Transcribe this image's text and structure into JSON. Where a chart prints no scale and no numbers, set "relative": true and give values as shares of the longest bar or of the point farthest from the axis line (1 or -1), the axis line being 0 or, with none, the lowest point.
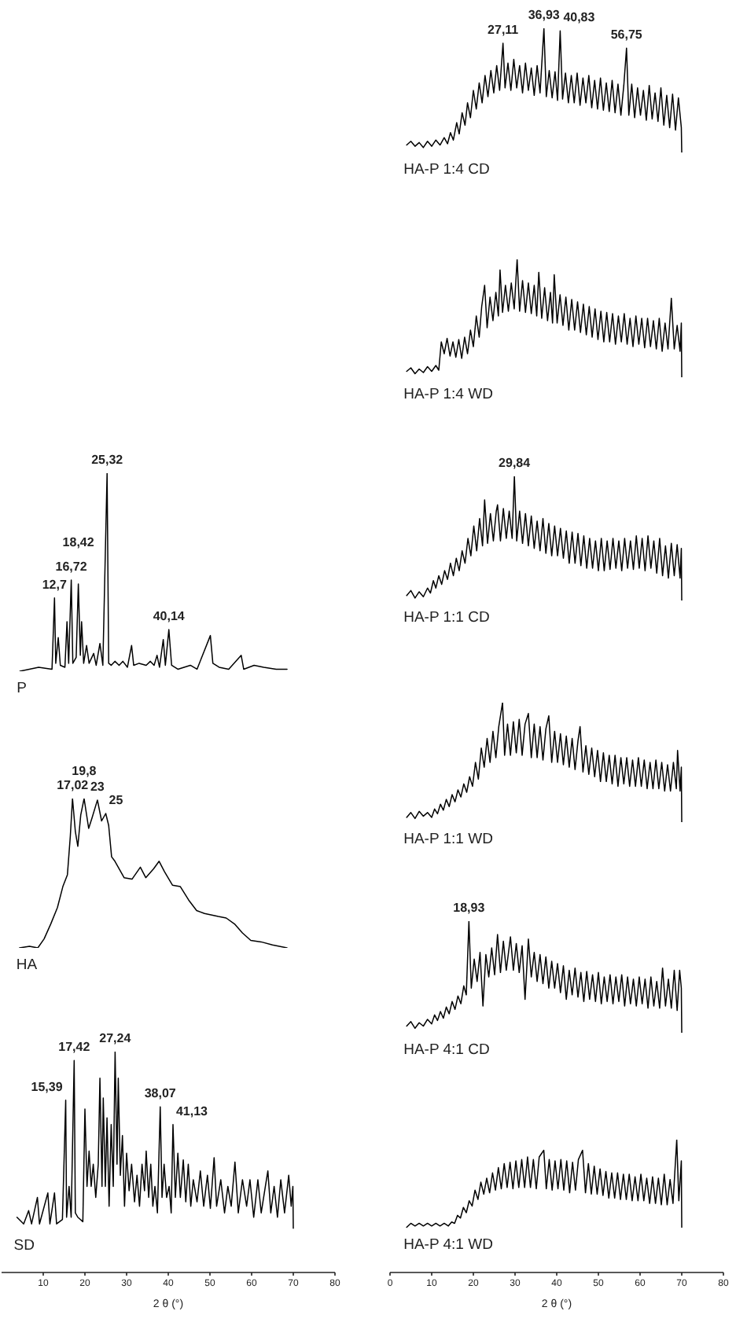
{
  "chart_data": [
    {
      "type": "line",
      "relative": true,
      "xlim": [
        0,
        80
      ],
      "tick_labels": false,
      "series": [
        {
          "name": "P",
          "color": "#000000",
          "x": [
            4.4,
            8.9,
            12.1,
            12.7,
            13.0,
            13.6,
            14.1,
            15.2,
            15.7,
            16.1,
            16.72,
            17.1,
            17.9,
            18.42,
            18.9,
            19.2,
            19.7,
            20.4,
            21.0,
            22.1,
            22.7,
            23.6,
            24.3,
            25.32,
            25.7,
            26.3,
            27.2,
            28.2,
            29.1,
            30.2,
            31.2,
            31.7,
            33.0,
            34.7,
            35.7,
            36.6,
            37.3,
            37.9,
            38.8,
            39.3,
            40.14,
            40.8,
            42.3,
            45.3,
            46.9,
            50.1,
            50.7,
            52.2,
            54.5,
            57.5,
            58.1,
            60.6,
            62.9,
            65.9,
            68.5
          ],
          "values": [
            0,
            0.02,
            0.01,
            0.37,
            0.04,
            0.17,
            0.03,
            0.02,
            0.25,
            0.04,
            0.46,
            0.04,
            0.07,
            0.44,
            0.08,
            0.25,
            0.04,
            0.13,
            0.04,
            0.09,
            0.03,
            0.14,
            0.03,
            1,
            0.04,
            0.03,
            0.05,
            0.03,
            0.05,
            0.02,
            0.13,
            0.03,
            0.04,
            0.03,
            0.05,
            0.03,
            0.08,
            0.02,
            0.16,
            0.03,
            0.21,
            0.03,
            0.01,
            0.03,
            0.01,
            0.18,
            0.04,
            0.02,
            0.01,
            0.08,
            0.01,
            0.03,
            0.02,
            0.01,
            0.01
          ]
        }
      ],
      "annotations": [
        {
          "text": "12,7",
          "x": 12.7,
          "y": 0.37
        },
        {
          "text": "16,72",
          "x": 16.72,
          "y": 0.46
        },
        {
          "text": "18,42",
          "x": 18.42,
          "y": 0.44
        },
        {
          "text": "25,32",
          "x": 25.32,
          "y": 1
        },
        {
          "text": "40,14",
          "x": 40.14,
          "y": 0.21
        }
      ]
    },
    {
      "type": "line",
      "relative": true,
      "xlim": [
        0,
        80
      ],
      "tick_labels": false,
      "series": [
        {
          "name": "HA",
          "color": "#000000",
          "x": [
            4.3,
            6.7,
            8.7,
            10.2,
            11.8,
            13.4,
            14.7,
            15.8,
            16.5,
            17.02,
            17.7,
            18.3,
            19.0,
            19.8,
            20.9,
            21.7,
            23,
            24,
            25,
            25.7,
            26.4,
            27.2,
            29.4,
            31.3,
            33.3,
            34.6,
            36.5,
            37.8,
            39.1,
            41.0,
            42.9,
            44.9,
            46.8,
            48.7,
            52.0,
            53.9,
            55.9,
            57.8,
            59.8,
            62.3,
            65.0,
            68.5
          ],
          "values": [
            0,
            0.01,
            0,
            0.06,
            0.16,
            0.27,
            0.41,
            0.49,
            0.75,
            1,
            0.78,
            0.68,
            0.89,
            1,
            0.8,
            0.87,
            0.99,
            0.85,
            0.9,
            0.82,
            0.61,
            0.58,
            0.47,
            0.46,
            0.54,
            0.47,
            0.53,
            0.58,
            0.51,
            0.42,
            0.41,
            0.32,
            0.25,
            0.23,
            0.21,
            0.2,
            0.16,
            0.1,
            0.05,
            0.04,
            0.02,
            0
          ]
        }
      ],
      "annotations": [
        {
          "text": "17,02",
          "x": 17.02,
          "y": 1
        },
        {
          "text": "19,8",
          "x": 19.8,
          "y": 1
        },
        {
          "text": "23",
          "x": 23,
          "y": 0.99
        },
        {
          "text": "25",
          "x": 25,
          "y": 0.9
        }
      ]
    },
    {
      "type": "line",
      "relative": true,
      "xlim": [
        0,
        80
      ],
      "xticks": [
        10,
        20,
        30,
        40,
        50,
        60,
        70,
        80
      ],
      "xlabel": "2 θ (°)",
      "tick_labels": "x",
      "series": [
        {
          "name": "SD",
          "color": "#000000",
          "x": [
            3.7,
            5.3,
            6.5,
            7.2,
            8.6,
            9.1,
            11.1,
            11.6,
            12.7,
            13.2,
            14.6,
            15.39,
            15.6,
            16.2,
            16.7,
            17.42,
            17.7,
            18.3,
            18.9,
            19.5,
            20,
            20.5,
            21,
            21.5,
            22,
            22.6,
            23.2,
            23.6,
            24.1,
            24.4,
            24.9,
            25.3,
            25.8,
            26.3,
            26.8,
            27.24,
            27.7,
            28,
            28.5,
            29,
            29.5,
            30,
            30.6,
            31.2,
            31.9,
            32.5,
            33.1,
            33.7,
            34.3,
            34.7,
            35.3,
            35.8,
            36.3,
            36.8,
            37.4,
            38.07,
            38.5,
            39,
            39.6,
            40.2,
            40.7,
            41.13,
            41.7,
            42.3,
            42.9,
            43.6,
            44.2,
            44.8,
            45.4,
            46,
            46.9,
            47.7,
            48.5,
            49.4,
            50.1,
            51,
            51.6,
            52.6,
            53.5,
            54.3,
            55.1,
            56,
            56.8,
            57.8,
            58.8,
            59.6,
            60.5,
            61.5,
            62.3,
            63.3,
            63.9,
            64.6,
            65.4,
            66.2,
            67,
            67.9,
            68.9,
            69.5,
            69.9,
            70
          ],
          "values": [
            0.25,
            0.22,
            0.28,
            0.22,
            0.34,
            0.22,
            0.36,
            0.22,
            0.36,
            0.22,
            0.24,
            0.78,
            0.25,
            0.39,
            0.25,
            0.96,
            0.27,
            0.25,
            0.24,
            0.23,
            0.74,
            0.39,
            0.55,
            0.39,
            0.49,
            0.34,
            0.49,
            0.88,
            0.39,
            0.79,
            0.39,
            0.7,
            0.3,
            0.67,
            0.39,
            1,
            0.49,
            0.88,
            0.44,
            0.62,
            0.3,
            0.54,
            0.37,
            0.49,
            0.32,
            0.44,
            0.3,
            0.49,
            0.37,
            0.55,
            0.34,
            0.49,
            0.3,
            0.39,
            0.27,
            0.75,
            0.34,
            0.49,
            0.34,
            0.39,
            0.27,
            0.67,
            0.34,
            0.54,
            0.34,
            0.51,
            0.32,
            0.49,
            0.3,
            0.42,
            0.32,
            0.46,
            0.3,
            0.44,
            0.29,
            0.52,
            0.3,
            0.42,
            0.27,
            0.39,
            0.3,
            0.5,
            0.27,
            0.42,
            0.3,
            0.42,
            0.25,
            0.42,
            0.27,
            0.39,
            0.46,
            0.27,
            0.39,
            0.25,
            0.42,
            0.27,
            0.44,
            0.3,
            0.39,
            0.2
          ]
        }
      ],
      "annotations": [
        {
          "text": "15,39",
          "x": 15.39,
          "y": 0.78
        },
        {
          "text": "17,42",
          "x": 17.42,
          "y": 0.96
        },
        {
          "text": "27,24",
          "x": 27.24,
          "y": 1
        },
        {
          "text": "38,07",
          "x": 38.07,
          "y": 0.75
        },
        {
          "text": "41,13",
          "x": 41.13,
          "y": 0.67
        }
      ]
    },
    {
      "type": "line",
      "relative": true,
      "xlim": [
        0,
        80
      ],
      "tick_labels": false,
      "series": [
        {
          "name": "HA-P 1:4 CD",
          "color": "#000000",
          "x": [
            4,
            5,
            6,
            7,
            8,
            9,
            10,
            11,
            12,
            13,
            13.8,
            14.5,
            15.2,
            16,
            16.6,
            17.3,
            18,
            18.6,
            19.3,
            20,
            20.7,
            21.4,
            22.1,
            22.8,
            23.5,
            24.2,
            24.9,
            25.6,
            26.3,
            27.11,
            27.6,
            28.3,
            29,
            29.7,
            30.4,
            31.1,
            31.8,
            32.5,
            33.2,
            33.9,
            34.6,
            35.3,
            36,
            36.93,
            37.5,
            38.2,
            38.9,
            39.6,
            40.2,
            40.83,
            41.4,
            42.1,
            42.8,
            43.5,
            44.2,
            44.9,
            45.6,
            46.3,
            47,
            47.7,
            48.4,
            49.1,
            49.8,
            50.5,
            51.2,
            51.9,
            52.6,
            53.3,
            54,
            54.7,
            55.4,
            56.1,
            56.75,
            57.3,
            58,
            58.7,
            59.4,
            60.1,
            60.8,
            61.5,
            62.2,
            62.9,
            63.6,
            64.3,
            65,
            65.7,
            66.4,
            67.1,
            67.8,
            68.5,
            69.2,
            69.9,
            70
          ],
          "values": [
            0.06,
            0.09,
            0.05,
            0.08,
            0.04,
            0.09,
            0.05,
            0.1,
            0.06,
            0.12,
            0.07,
            0.16,
            0.1,
            0.24,
            0.15,
            0.32,
            0.22,
            0.4,
            0.28,
            0.5,
            0.35,
            0.56,
            0.4,
            0.62,
            0.45,
            0.66,
            0.48,
            0.7,
            0.5,
            0.88,
            0.52,
            0.72,
            0.5,
            0.75,
            0.52,
            0.7,
            0.48,
            0.72,
            0.5,
            0.68,
            0.46,
            0.7,
            0.48,
            1,
            0.45,
            0.66,
            0.44,
            0.65,
            0.42,
            0.98,
            0.43,
            0.64,
            0.4,
            0.62,
            0.4,
            0.64,
            0.38,
            0.6,
            0.4,
            0.62,
            0.36,
            0.58,
            0.35,
            0.6,
            0.34,
            0.56,
            0.33,
            0.58,
            0.32,
            0.55,
            0.3,
            0.54,
            0.84,
            0.3,
            0.55,
            0.28,
            0.52,
            0.3,
            0.5,
            0.26,
            0.54,
            0.27,
            0.48,
            0.25,
            0.52,
            0.22,
            0.46,
            0.2,
            0.47,
            0.18,
            0.44,
            0.2,
            0
          ]
        }
      ],
      "annotations": [
        {
          "text": "27,11",
          "x": 27.11,
          "y": 0.88
        },
        {
          "text": "36,93",
          "x": 36.93,
          "y": 1
        },
        {
          "text": "40,83",
          "x": 40.83,
          "y": 0.98
        },
        {
          "text": "56,75",
          "x": 56.75,
          "y": 0.84
        }
      ]
    },
    {
      "type": "line",
      "relative": true,
      "xlim": [
        0,
        80
      ],
      "tick_labels": false,
      "series": [
        {
          "name": "HA-P 1:4 WD",
          "color": "#000000",
          "x": [
            4,
            5,
            6,
            7,
            8,
            9,
            10,
            11,
            11.7,
            12.3,
            13,
            13.7,
            14.4,
            15.1,
            15.8,
            16.5,
            17.2,
            17.9,
            18.6,
            19.3,
            20,
            20.7,
            21.4,
            22,
            22.7,
            23.3,
            24,
            24.7,
            25.4,
            26,
            26.4,
            27,
            27.7,
            28.4,
            29.1,
            29.8,
            30.5,
            31.1,
            31.8,
            32.5,
            33.2,
            33.9,
            34.6,
            35.2,
            35.7,
            36.4,
            37.1,
            37.8,
            38.5,
            39,
            39.4,
            40.1,
            40.8,
            41.5,
            42.2,
            42.9,
            43.6,
            44.3,
            45,
            45.7,
            46.4,
            47.1,
            47.8,
            48.5,
            49.2,
            49.9,
            50.6,
            51.3,
            52,
            52.7,
            53.4,
            54.1,
            54.8,
            55.5,
            56.2,
            56.9,
            57.6,
            58.3,
            59,
            59.7,
            60.4,
            61.1,
            61.8,
            62.5,
            63.2,
            63.9,
            64.6,
            65.3,
            66,
            66.7,
            67.5,
            68.2,
            68.9,
            69.6,
            69.9,
            70
          ],
          "values": [
            0.05,
            0.08,
            0.03,
            0.07,
            0.04,
            0.09,
            0.05,
            0.1,
            0.06,
            0.3,
            0.2,
            0.33,
            0.18,
            0.3,
            0.17,
            0.32,
            0.16,
            0.34,
            0.2,
            0.4,
            0.26,
            0.52,
            0.34,
            0.6,
            0.78,
            0.42,
            0.68,
            0.48,
            0.72,
            0.52,
            0.91,
            0.55,
            0.78,
            0.56,
            0.8,
            0.58,
            1,
            0.56,
            0.82,
            0.55,
            0.8,
            0.54,
            0.78,
            0.52,
            0.89,
            0.5,
            0.76,
            0.48,
            0.72,
            0.46,
            0.87,
            0.46,
            0.7,
            0.44,
            0.68,
            0.4,
            0.66,
            0.4,
            0.64,
            0.38,
            0.62,
            0.36,
            0.6,
            0.34,
            0.58,
            0.32,
            0.56,
            0.3,
            0.55,
            0.3,
            0.54,
            0.28,
            0.52,
            0.3,
            0.54,
            0.28,
            0.5,
            0.26,
            0.52,
            0.28,
            0.5,
            0.25,
            0.5,
            0.26,
            0.48,
            0.24,
            0.5,
            0.22,
            0.46,
            0.24,
            0.67,
            0.24,
            0.44,
            0.22,
            0.46,
            0
          ]
        }
      ]
    },
    {
      "type": "line",
      "relative": true,
      "xlim": [
        0,
        80
      ],
      "tick_labels": false,
      "series": [
        {
          "name": "HA-P 1:1 CD",
          "color": "#000000",
          "x": [
            4,
            5,
            6,
            7,
            8,
            9,
            9.7,
            10.4,
            11,
            11.7,
            12.4,
            13.1,
            13.8,
            14.5,
            15.2,
            15.9,
            16.6,
            17.3,
            18,
            18.7,
            19.4,
            20.1,
            20.8,
            21.5,
            22.2,
            22.7,
            23.4,
            24.1,
            24.8,
            25.5,
            25.8,
            26.5,
            27.2,
            27.9,
            28.6,
            29.3,
            29.84,
            30.4,
            31.1,
            31.8,
            32.5,
            33.2,
            33.9,
            34.6,
            35.3,
            36,
            36.7,
            37.4,
            38.1,
            38.8,
            39.5,
            40.2,
            40.9,
            41.6,
            42.3,
            43,
            43.7,
            44.4,
            45.1,
            45.8,
            46.5,
            47.2,
            47.9,
            48.6,
            49.3,
            50,
            50.7,
            51.4,
            52.1,
            52.8,
            53.5,
            54.2,
            54.9,
            55.6,
            56.3,
            57,
            57.7,
            58.4,
            59.1,
            59.8,
            60.5,
            61.2,
            61.9,
            62.6,
            63.3,
            64,
            64.7,
            65.4,
            66.1,
            66.8,
            67.5,
            68.2,
            68.9,
            69.6,
            69.9,
            70
          ],
          "values": [
            0.04,
            0.08,
            0.02,
            0.07,
            0.03,
            0.1,
            0.06,
            0.16,
            0.1,
            0.2,
            0.13,
            0.24,
            0.17,
            0.3,
            0.2,
            0.34,
            0.24,
            0.4,
            0.3,
            0.5,
            0.36,
            0.6,
            0.4,
            0.66,
            0.44,
            0.81,
            0.46,
            0.7,
            0.48,
            0.72,
            0.77,
            0.48,
            0.74,
            0.5,
            0.72,
            0.5,
            1,
            0.48,
            0.72,
            0.46,
            0.7,
            0.44,
            0.68,
            0.42,
            0.64,
            0.4,
            0.66,
            0.38,
            0.62,
            0.36,
            0.6,
            0.36,
            0.58,
            0.34,
            0.56,
            0.3,
            0.55,
            0.3,
            0.54,
            0.28,
            0.52,
            0.26,
            0.5,
            0.26,
            0.48,
            0.24,
            0.5,
            0.24,
            0.48,
            0.25,
            0.5,
            0.26,
            0.48,
            0.24,
            0.5,
            0.26,
            0.48,
            0.25,
            0.52,
            0.26,
            0.5,
            0.24,
            0.52,
            0.26,
            0.48,
            0.22,
            0.5,
            0.2,
            0.44,
            0.18,
            0.46,
            0.2,
            0.45,
            0.18,
            0.42,
            0
          ]
        }
      ],
      "annotations": [
        {
          "text": "29,84",
          "x": 29.84,
          "y": 1
        }
      ]
    },
    {
      "type": "line",
      "relative": true,
      "xlim": [
        0,
        80
      ],
      "tick_labels": false,
      "series": [
        {
          "name": "HA-P 1:1 WD",
          "color": "#000000",
          "x": [
            4,
            5,
            6,
            7,
            8,
            9,
            10,
            10.7,
            11.4,
            12.1,
            12.8,
            13.5,
            14.2,
            14.9,
            15.6,
            16.3,
            17,
            17.7,
            18.4,
            19.1,
            19.8,
            20.5,
            21.2,
            21.9,
            22.6,
            23.3,
            24,
            24.7,
            25.4,
            26.1,
            27,
            27.5,
            28.2,
            28.9,
            29.6,
            30.3,
            31,
            31.7,
            32.4,
            33.2,
            33.9,
            34.6,
            35.3,
            36,
            36.7,
            37.4,
            38.1,
            38.8,
            39.5,
            40.2,
            40.9,
            41.6,
            42.3,
            43,
            43.7,
            44.4,
            45.1,
            45.6,
            46.3,
            47,
            47.7,
            48.4,
            49.1,
            49.8,
            50.5,
            51.2,
            51.9,
            52.6,
            53.3,
            54,
            54.7,
            55.4,
            56.1,
            56.8,
            57.5,
            58.2,
            58.9,
            59.6,
            60.3,
            61,
            61.7,
            62.4,
            63.1,
            63.8,
            64.5,
            65.2,
            65.9,
            66.6,
            67.3,
            68,
            68.7,
            69,
            69.6,
            69.9,
            70
          ],
          "values": [
            0.04,
            0.08,
            0.03,
            0.09,
            0.05,
            0.08,
            0.04,
            0.11,
            0.07,
            0.15,
            0.1,
            0.19,
            0.13,
            0.23,
            0.17,
            0.27,
            0.21,
            0.32,
            0.25,
            0.38,
            0.3,
            0.5,
            0.36,
            0.62,
            0.46,
            0.7,
            0.5,
            0.76,
            0.54,
            0.8,
            1,
            0.56,
            0.82,
            0.56,
            0.84,
            0.58,
            0.86,
            0.56,
            0.82,
            0.91,
            0.54,
            0.82,
            0.54,
            0.8,
            0.52,
            0.78,
            0.89,
            0.5,
            0.76,
            0.5,
            0.74,
            0.48,
            0.72,
            0.46,
            0.7,
            0.44,
            0.68,
            0.8,
            0.42,
            0.64,
            0.4,
            0.62,
            0.38,
            0.6,
            0.34,
            0.58,
            0.34,
            0.56,
            0.32,
            0.56,
            0.3,
            0.54,
            0.32,
            0.54,
            0.3,
            0.52,
            0.3,
            0.54,
            0.3,
            0.52,
            0.28,
            0.5,
            0.28,
            0.52,
            0.28,
            0.5,
            0.26,
            0.48,
            0.26,
            0.5,
            0.28,
            0.6,
            0.26,
            0.46,
            0
          ]
        }
      ]
    },
    {
      "type": "line",
      "relative": true,
      "xlim": [
        0,
        80
      ],
      "tick_labels": false,
      "series": [
        {
          "name": "HA-P 4:1 CD",
          "color": "#000000",
          "x": [
            4,
            5,
            6,
            7,
            8,
            9,
            10,
            10.7,
            11.4,
            12.1,
            12.8,
            13.5,
            14.2,
            14.9,
            15.6,
            16.3,
            17,
            17.7,
            18.3,
            18.93,
            19.5,
            20.2,
            20.9,
            21.6,
            22.3,
            23,
            23.7,
            24.4,
            25.1,
            25.8,
            26.5,
            27.2,
            27.9,
            28.9,
            29.6,
            30.3,
            31,
            31.7,
            32.4,
            33.2,
            33.9,
            34.6,
            35.3,
            36,
            36.7,
            37.4,
            38.1,
            38.8,
            39.5,
            40.2,
            40.9,
            41.6,
            42.3,
            43,
            43.7,
            44.4,
            45.1,
            45.8,
            46.5,
            47.2,
            47.9,
            48.6,
            49.3,
            50,
            50.7,
            51.4,
            52.1,
            52.8,
            53.5,
            54.2,
            54.9,
            55.6,
            56.3,
            57,
            57.7,
            58.4,
            59.1,
            59.8,
            60.5,
            61.2,
            61.9,
            62.6,
            63.3,
            64,
            64.7,
            65.4,
            66.1,
            66.8,
            67.5,
            68.2,
            68.9,
            69.5,
            69.9,
            70
          ],
          "values": [
            0.06,
            0.1,
            0.04,
            0.09,
            0.06,
            0.12,
            0.08,
            0.16,
            0.11,
            0.19,
            0.13,
            0.23,
            0.17,
            0.28,
            0.21,
            0.33,
            0.26,
            0.42,
            0.34,
            1,
            0.4,
            0.66,
            0.46,
            0.72,
            0.24,
            0.7,
            0.5,
            0.76,
            0.52,
            0.88,
            0.54,
            0.82,
            0.56,
            0.86,
            0.56,
            0.8,
            0.54,
            0.78,
            0.3,
            0.84,
            0.5,
            0.72,
            0.46,
            0.7,
            0.44,
            0.68,
            0.4,
            0.64,
            0.4,
            0.62,
            0.36,
            0.6,
            0.3,
            0.56,
            0.34,
            0.58,
            0.32,
            0.54,
            0.28,
            0.55,
            0.3,
            0.52,
            0.28,
            0.54,
            0.26,
            0.5,
            0.28,
            0.52,
            0.26,
            0.5,
            0.28,
            0.52,
            0.24,
            0.5,
            0.26,
            0.48,
            0.24,
            0.5,
            0.26,
            0.48,
            0.22,
            0.5,
            0.24,
            0.46,
            0.22,
            0.58,
            0.24,
            0.48,
            0.22,
            0.56,
            0.2,
            0.56,
            0.4,
            0
          ]
        }
      ],
      "annotations": [
        {
          "text": "18,93",
          "x": 18.93,
          "y": 1
        }
      ]
    },
    {
      "type": "line",
      "relative": true,
      "xlim": [
        0,
        80
      ],
      "xticks": [
        0,
        10,
        20,
        30,
        40,
        50,
        60,
        70,
        80
      ],
      "xlabel": "2 θ (°)",
      "tick_labels": "x",
      "series": [
        {
          "name": "HA-P 4:1 WD",
          "color": "#000000",
          "x": [
            4,
            5,
            6,
            7,
            8,
            9,
            10,
            11,
            12,
            13,
            14,
            14.8,
            15.5,
            16.2,
            16.9,
            17.6,
            18.3,
            19,
            19.7,
            20.4,
            21.1,
            21.8,
            22.5,
            23.2,
            23.9,
            24.6,
            25.3,
            26,
            26.7,
            27.4,
            28.1,
            28.8,
            29.5,
            30.2,
            30.9,
            31.6,
            32.3,
            33,
            33.7,
            34.4,
            35.1,
            35.8,
            36.9,
            37.5,
            38.2,
            38.9,
            39.6,
            40.3,
            41,
            41.7,
            42.4,
            43.1,
            43.8,
            44.5,
            45.2,
            46.2,
            46.9,
            47.6,
            48.3,
            49,
            49.7,
            50.4,
            51.1,
            51.8,
            52.5,
            53.2,
            53.9,
            54.6,
            55.3,
            56,
            56.7,
            57.4,
            58.1,
            58.8,
            59.5,
            60.2,
            60.9,
            61.6,
            62.3,
            63,
            63.7,
            64.4,
            65.1,
            65.8,
            66.5,
            67.2,
            67.9,
            68.8,
            69.3,
            69.9,
            70
          ],
          "values": [
            0.34,
            0.37,
            0.35,
            0.37,
            0.35,
            0.37,
            0.35,
            0.37,
            0.35,
            0.37,
            0.35,
            0.38,
            0.37,
            0.43,
            0.41,
            0.49,
            0.45,
            0.54,
            0.5,
            0.62,
            0.55,
            0.68,
            0.59,
            0.71,
            0.6,
            0.75,
            0.62,
            0.79,
            0.63,
            0.82,
            0.64,
            0.83,
            0.63,
            0.84,
            0.64,
            0.85,
            0.64,
            0.87,
            0.64,
            0.85,
            0.63,
            0.87,
            0.92,
            0.63,
            0.85,
            0.62,
            0.84,
            0.63,
            0.85,
            0.62,
            0.84,
            0.6,
            0.83,
            0.62,
            0.85,
            0.92,
            0.6,
            0.82,
            0.59,
            0.8,
            0.59,
            0.78,
            0.58,
            0.76,
            0.56,
            0.75,
            0.56,
            0.75,
            0.55,
            0.74,
            0.55,
            0.74,
            0.54,
            0.72,
            0.54,
            0.74,
            0.54,
            0.71,
            0.52,
            0.72,
            0.52,
            0.71,
            0.51,
            0.74,
            0.51,
            0.7,
            0.52,
            1,
            0.54,
            0.84,
            0.34
          ]
        }
      ]
    }
  ]
}
